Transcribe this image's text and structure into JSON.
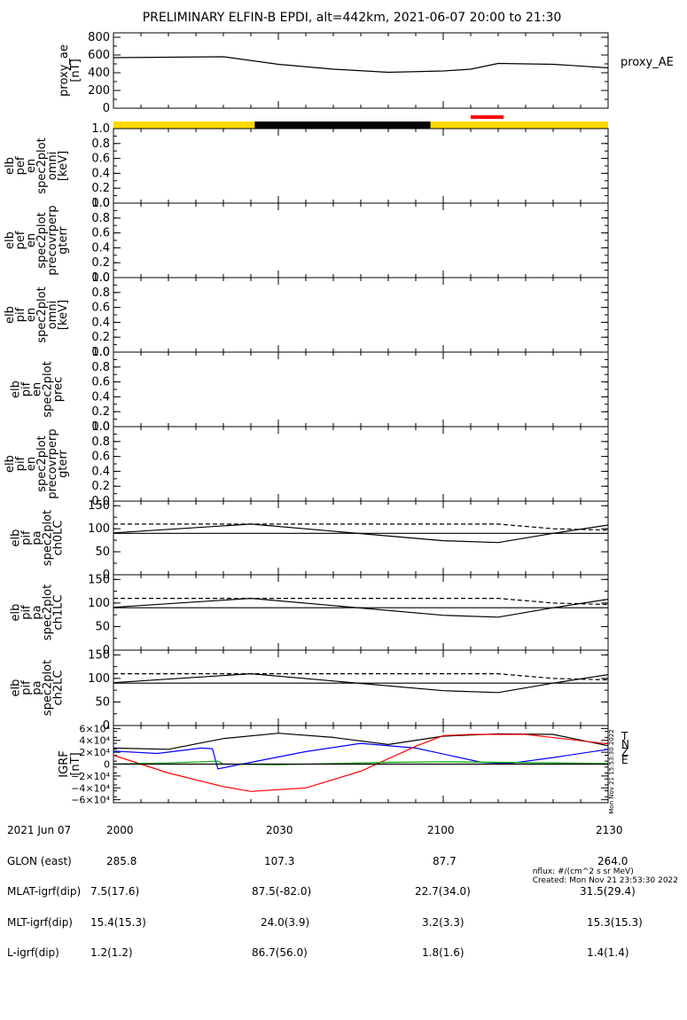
{
  "title": "PRELIMINARY ELFIN-B EPDI, alt=442km, 2021-06-07 20:00 to 21:30",
  "chart_data": [
    {
      "id": "proxy_ae",
      "type": "line",
      "ylabel": [
        "proxy_ae",
        "[nT]"
      ],
      "legend": "proxy_AE",
      "ylim": [
        0,
        850
      ],
      "yticks": [
        "0",
        "200",
        "400",
        "600",
        "800"
      ],
      "series": [
        {
          "x": [
            0,
            10,
            20,
            30,
            40,
            50,
            60,
            65,
            70,
            80,
            90
          ],
          "y": [
            570,
            575,
            580,
            495,
            440,
            405,
            420,
            440,
            505,
            495,
            455
          ]
        }
      ]
    },
    {
      "id": "spin_bar",
      "type": "bar",
      "segments": [
        {
          "from": 0,
          "to": 25.7,
          "color": "#ffd700"
        },
        {
          "from": 25.7,
          "to": 57.7,
          "color": "#000000"
        },
        {
          "from": 57.7,
          "to": 90,
          "color": "#ffd700"
        }
      ],
      "marker": {
        "from": 65,
        "to": 71,
        "color": "#ff0000"
      }
    },
    {
      "id": "p3",
      "type": "line",
      "ylabel": [
        "elb",
        "pef",
        "en",
        "spec2plot",
        "omni",
        "[keV]"
      ],
      "ylim": [
        0,
        1
      ],
      "yticks": [
        "0.0",
        "0.2",
        "0.4",
        "0.6",
        "0.8",
        "1.0"
      ]
    },
    {
      "id": "p4",
      "type": "line",
      "ylabel": [
        "elb",
        "pef",
        "en",
        "spec2plot",
        "precovrperp",
        "gterr"
      ],
      "ylim": [
        0,
        1
      ],
      "yticks": [
        "0.0",
        "0.2",
        "0.4",
        "0.6",
        "0.8",
        "1.0"
      ]
    },
    {
      "id": "p5",
      "type": "line",
      "ylabel": [
        "elb",
        "pif",
        "en",
        "spec2plot",
        "omni",
        "[keV]"
      ],
      "ylim": [
        0,
        1
      ],
      "yticks": [
        "0.0",
        "0.2",
        "0.4",
        "0.6",
        "0.8",
        "1.0"
      ]
    },
    {
      "id": "p6",
      "type": "line",
      "ylabel": [
        "elb",
        "pif",
        "en",
        "spec2plot",
        "prec"
      ],
      "ylim": [
        0,
        1
      ],
      "yticks": [
        "0.0",
        "0.2",
        "0.4",
        "0.6",
        "0.8",
        "1.0"
      ]
    },
    {
      "id": "p7",
      "type": "line",
      "ylabel": [
        "elb",
        "pif",
        "en",
        "spec2plot",
        "precovrperp",
        "gterr"
      ],
      "ylim": [
        0,
        1
      ],
      "yticks": [
        "0.0",
        "0.2",
        "0.4",
        "0.6",
        "0.8",
        "1.0"
      ]
    },
    {
      "id": "p8",
      "type": "line",
      "ylabel": [
        "elb",
        "pif",
        "pa",
        "spec2plot",
        "ch0LC"
      ],
      "ylim": [
        0,
        160
      ],
      "yticks": [
        "0",
        "50",
        "100",
        "150"
      ],
      "series": [
        {
          "style": "solid",
          "x": [
            0,
            25,
            60,
            70,
            80,
            90
          ],
          "y": [
            91,
            110,
            74,
            70,
            90,
            108
          ]
        },
        {
          "style": "dashed",
          "x": [
            0,
            30,
            70,
            80,
            90
          ],
          "y": [
            110,
            110,
            110,
            100,
            97
          ]
        },
        {
          "style": "solid",
          "x": [
            0,
            90
          ],
          "y": [
            90,
            90
          ]
        }
      ]
    },
    {
      "id": "p9",
      "type": "line",
      "ylabel": [
        "elb",
        "pif",
        "pa",
        "spec2plot",
        "ch1LC"
      ],
      "ylim": [
        0,
        160
      ],
      "yticks": [
        "0",
        "50",
        "100",
        "150"
      ],
      "series": [
        {
          "style": "solid",
          "x": [
            0,
            25,
            60,
            70,
            80,
            90
          ],
          "y": [
            91,
            110,
            74,
            70,
            90,
            108
          ]
        },
        {
          "style": "dashed",
          "x": [
            0,
            30,
            70,
            80,
            90
          ],
          "y": [
            110,
            110,
            110,
            100,
            97
          ]
        },
        {
          "style": "solid",
          "x": [
            0,
            90
          ],
          "y": [
            90,
            90
          ]
        }
      ]
    },
    {
      "id": "p10",
      "type": "line",
      "ylabel": [
        "elb",
        "pif",
        "pa",
        "spec2plot",
        "ch2LC"
      ],
      "ylim": [
        0,
        160
      ],
      "yticks": [
        "0",
        "50",
        "100",
        "150"
      ],
      "series": [
        {
          "style": "solid",
          "x": [
            0,
            25,
            60,
            70,
            80,
            90
          ],
          "y": [
            91,
            110,
            74,
            70,
            90,
            108
          ]
        },
        {
          "style": "dashed",
          "x": [
            0,
            30,
            70,
            80,
            90
          ],
          "y": [
            110,
            110,
            110,
            100,
            97
          ]
        },
        {
          "style": "solid",
          "x": [
            0,
            90
          ],
          "y": [
            90,
            90
          ]
        }
      ]
    },
    {
      "id": "igrf",
      "type": "line",
      "ylabel": [
        "IGRF",
        "[nT]"
      ],
      "ylim": [
        -65000,
        65000
      ],
      "yticks": [
        "−6×10⁴",
        "−4×10⁴",
        "−2×10⁴",
        "0",
        "2×10⁴",
        "4×10⁴",
        "6×10⁴"
      ],
      "ytick_values": [
        -60000,
        -40000,
        -20000,
        0,
        20000,
        40000,
        60000
      ],
      "legend": [
        "T",
        "N",
        "Z",
        "E"
      ],
      "legend_colors": [
        "#000000",
        "#0000ff",
        "#ff0000",
        "#00aa00"
      ],
      "side_text": "Mon Nov 21 15:53:30 2022",
      "series": [
        {
          "name": "T",
          "color": "#000000",
          "x": [
            0,
            10,
            20,
            30,
            40,
            50,
            60,
            70,
            80,
            90
          ],
          "y": [
            27000,
            25000,
            43000,
            52000,
            45000,
            33000,
            47000,
            51000,
            50000,
            31000
          ]
        },
        {
          "name": "N",
          "color": "#0000ff",
          "x": [
            0,
            8,
            16,
            18,
            19,
            25,
            35,
            45,
            55,
            67,
            72,
            80,
            90
          ],
          "y": [
            22000,
            18000,
            27000,
            26000,
            -8000,
            3000,
            21000,
            35000,
            27000,
            3000,
            1000,
            11000,
            25000
          ]
        },
        {
          "name": "Z",
          "color": "#ff0000",
          "x": [
            0,
            10,
            20,
            25,
            35,
            45,
            55,
            60,
            65,
            75,
            90
          ],
          "y": [
            15000,
            -15000,
            -38000,
            -46000,
            -40000,
            -12000,
            30000,
            48000,
            50000,
            50000,
            34000
          ]
        },
        {
          "name": "E",
          "color": "#00aa00",
          "x": [
            0,
            10,
            19,
            20,
            30,
            40,
            50,
            60,
            70,
            90
          ],
          "y": [
            0,
            2000,
            5000,
            0,
            -1000,
            1000,
            3000,
            4000,
            3000,
            1000
          ]
        },
        {
          "name": "zero",
          "color": "#000000",
          "x": [
            0,
            90
          ],
          "y": [
            0,
            0
          ]
        }
      ]
    }
  ],
  "xaxis": {
    "ticks": [
      "2000",
      "2030",
      "2100",
      "2130"
    ],
    "minutes": [
      0,
      30,
      60,
      90
    ]
  },
  "footer": {
    "rows": [
      {
        "label": "2021 Jun 07",
        "values": [
          "2000",
          "2030",
          "2100",
          "2130"
        ]
      },
      {
        "label": "GLON (east)",
        "values": [
          "285.8",
          "107.3",
          "87.7",
          "264.0"
        ]
      },
      {
        "label": "MLAT-igrf(dip)",
        "values": [
          "7.5(17.6)",
          "87.5(-82.0)",
          "22.7(34.0)",
          "31.5(29.4)"
        ]
      },
      {
        "label": "MLT-igrf(dip)",
        "values": [
          "15.4(15.3)",
          "24.0(3.9)",
          "3.2(3.3)",
          "15.3(15.3)"
        ]
      },
      {
        "label": "L-igrf(dip)",
        "values": [
          "1.2(1.2)",
          "86.7(56.0)",
          "1.8(1.6)",
          "1.4(1.4)"
        ]
      }
    ],
    "nflux": "nflux: #/(cm^2 s sr MeV)",
    "created": "Created: Mon Nov 21 23:53:30 2022"
  }
}
